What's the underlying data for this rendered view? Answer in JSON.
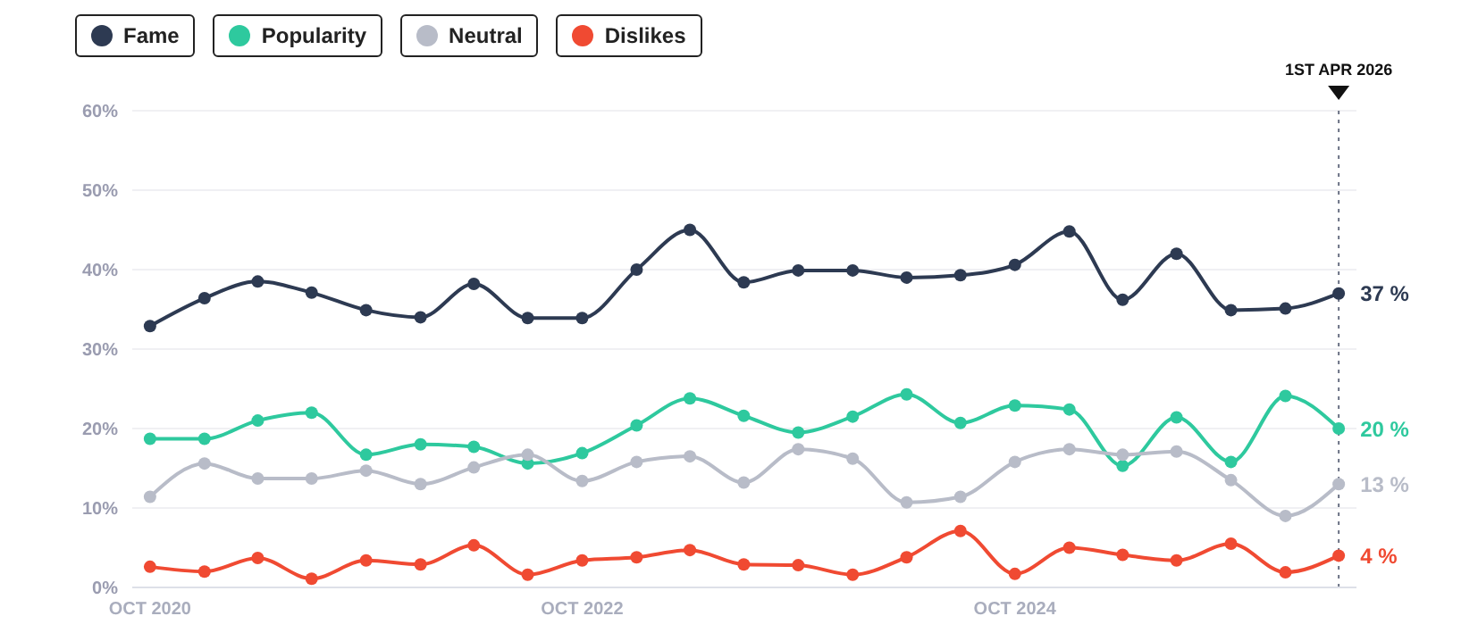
{
  "chart_data": {
    "type": "line",
    "x": [
      "2020-10",
      "2021-01",
      "2021-04",
      "2021-07",
      "2021-10",
      "2022-01",
      "2022-04",
      "2022-07",
      "2022-10",
      "2023-01",
      "2023-04",
      "2023-07",
      "2023-10",
      "2024-01",
      "2024-04",
      "2024-07",
      "2024-10",
      "2025-01",
      "2025-04",
      "2025-07",
      "2025-10",
      "2026-01",
      "2026-04"
    ],
    "series": [
      {
        "name": "Fame",
        "color": "#2d3a52",
        "values": [
          32.9,
          36.4,
          38.5,
          37.1,
          34.9,
          34.0,
          38.2,
          33.9,
          33.9,
          40.0,
          45.0,
          38.4,
          39.9,
          39.9,
          39.0,
          39.3,
          40.6,
          44.8,
          36.2,
          42.0,
          34.9,
          35.1,
          37
        ]
      },
      {
        "name": "Popularity",
        "color": "#2ec99e",
        "values": [
          18.7,
          18.7,
          21.0,
          22.0,
          16.7,
          18.0,
          17.7,
          15.6,
          16.9,
          20.4,
          23.8,
          21.6,
          19.5,
          21.5,
          24.3,
          20.7,
          22.9,
          22.4,
          15.3,
          21.4,
          15.8,
          24.1,
          20
        ]
      },
      {
        "name": "Neutral",
        "color": "#b8bcc8",
        "values": [
          11.4,
          15.6,
          13.7,
          13.7,
          14.7,
          13.0,
          15.1,
          16.7,
          13.4,
          15.8,
          16.5,
          13.2,
          17.4,
          16.2,
          10.7,
          11.4,
          15.8,
          17.4,
          16.7,
          17.1,
          13.5,
          9.0,
          13
        ]
      },
      {
        "name": "Dislikes",
        "color": "#f04a32",
        "values": [
          2.6,
          2.0,
          3.7,
          1.1,
          3.4,
          2.9,
          5.3,
          1.6,
          3.4,
          3.8,
          4.7,
          2.9,
          2.8,
          1.6,
          3.8,
          7.1,
          1.7,
          5.0,
          4.1,
          3.4,
          5.5,
          1.9,
          4
        ]
      }
    ],
    "xlim": [
      "2020-09",
      "2026-05"
    ],
    "xticks": [
      {
        "value": "2020-10",
        "label": "OCT 2020"
      },
      {
        "value": "2022-10",
        "label": "OCT 2022"
      },
      {
        "value": "2024-10",
        "label": "OCT 2024"
      }
    ],
    "ylim": [
      0,
      60
    ],
    "yticks": [
      {
        "value": 0,
        "label": "0%"
      },
      {
        "value": 10,
        "label": "10%"
      },
      {
        "value": 20,
        "label": "20%"
      },
      {
        "value": 30,
        "label": "30%"
      },
      {
        "value": 40,
        "label": "40%"
      },
      {
        "value": 50,
        "label": "50%"
      },
      {
        "value": 60,
        "label": "60%"
      }
    ],
    "ref_lines": [
      {
        "axis": "x",
        "value": "2026-04",
        "label": "1ST APR 2026",
        "color": "#6b7285",
        "line_style": "dotted"
      }
    ],
    "annotations": [
      {
        "text": "37 %",
        "x": "2026-04",
        "y": 37
      },
      {
        "text": "20 %",
        "x": "2026-04",
        "y": 20
      },
      {
        "text": "13 %",
        "x": "2026-04",
        "y": 13
      },
      {
        "text": "4 %",
        "x": "2026-04",
        "y": 4
      }
    ],
    "grid": "y",
    "legend": "top left",
    "marker": "circle",
    "line_style": "solid"
  }
}
